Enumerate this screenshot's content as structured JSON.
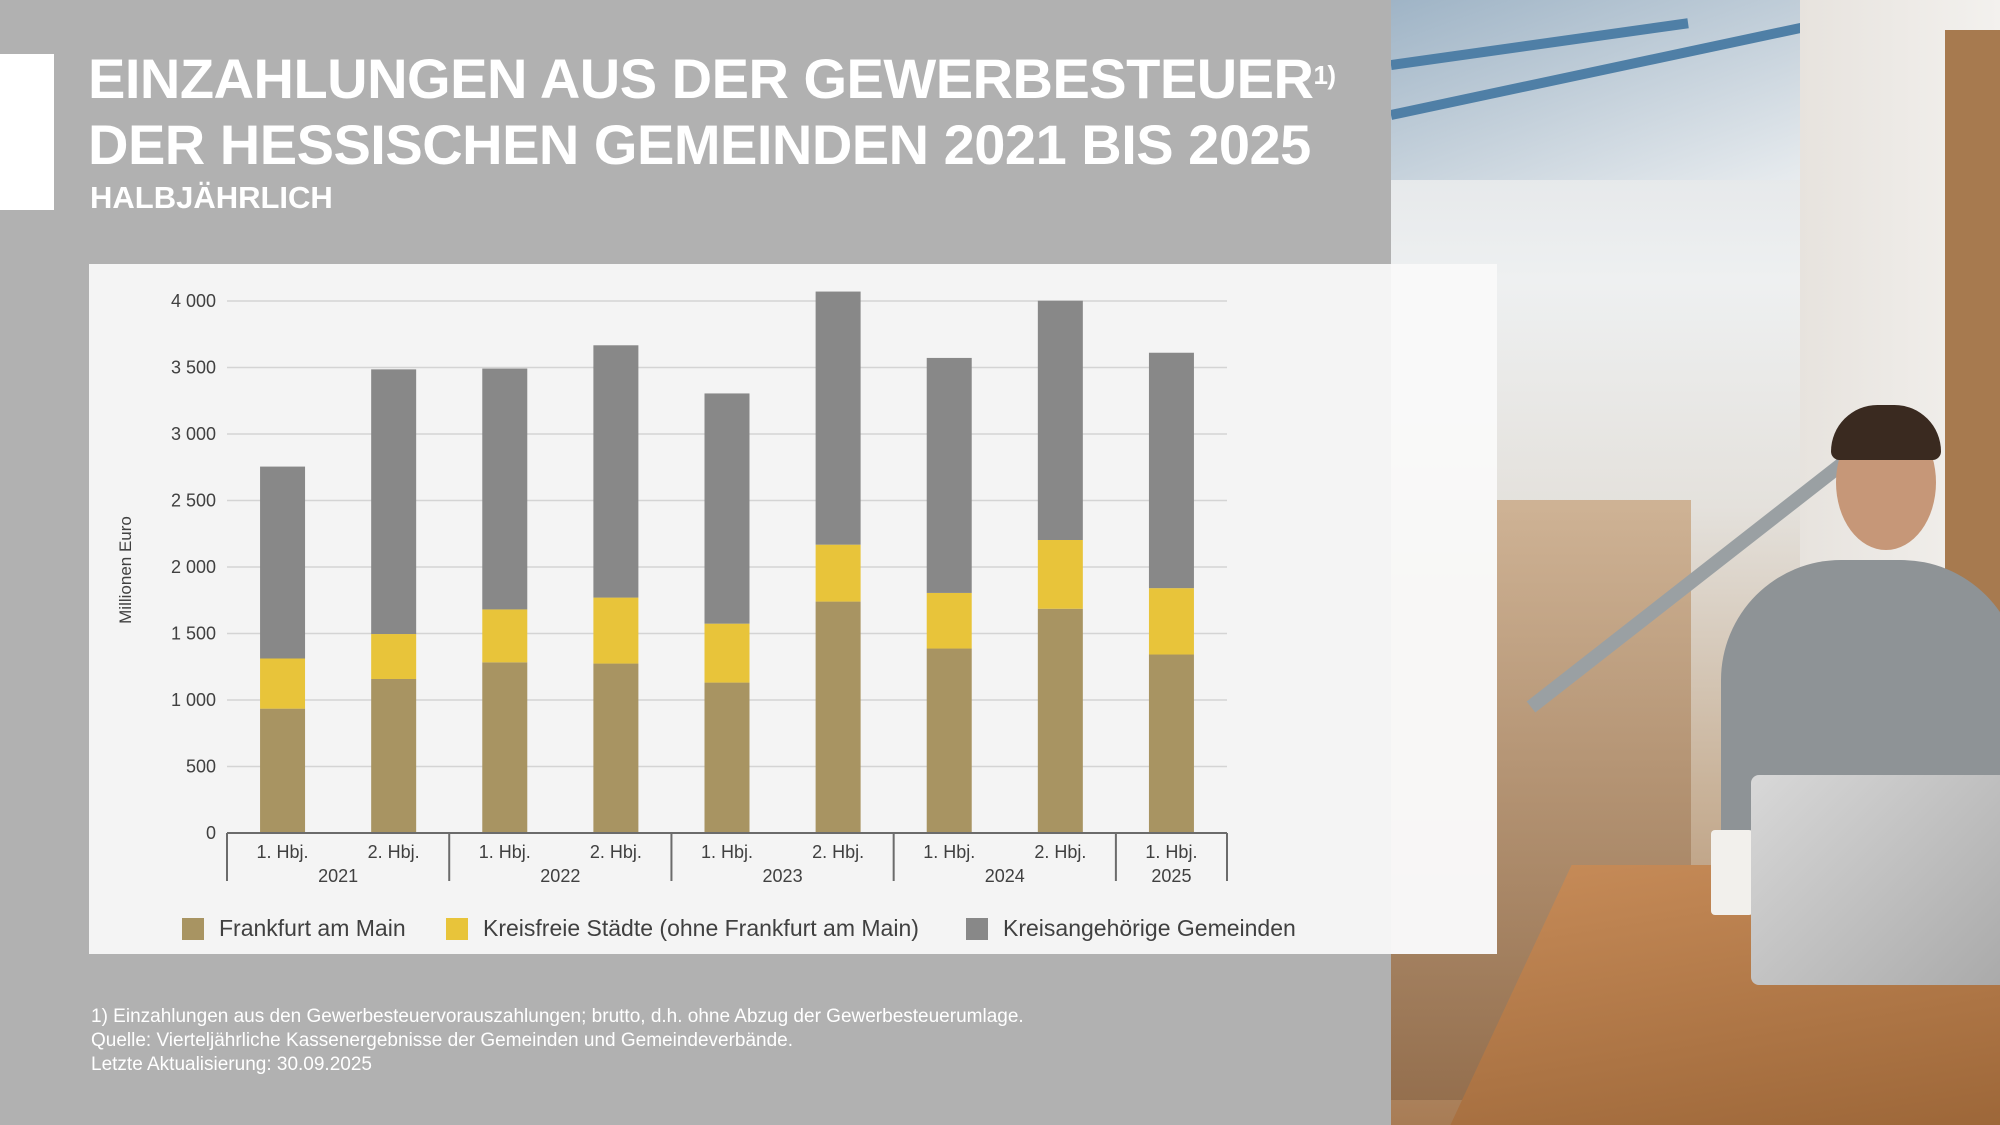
{
  "header": {
    "title_line1": "EINZAHLUNGEN AUS DER GEWERBESTEUER",
    "title_footnote_mark": "1)",
    "title_line2": "DER HESSISCHEN GEMEINDEN 2021 BIS 2025",
    "subtitle": "HALBJÄHRLICH"
  },
  "chart_data": {
    "type": "bar",
    "stacked": true,
    "title": "Einzahlungen aus der Gewerbesteuer der hessischen Gemeinden 2021 bis 2025",
    "ylabel": "Millionen Euro",
    "xlabel": "",
    "ylim": [
      0,
      4000
    ],
    "yticks": [
      0,
      500,
      1000,
      1500,
      2000,
      2500,
      3000,
      3500,
      4000
    ],
    "ytick_labels": [
      "0",
      "500",
      "1 000",
      "1 500",
      "2 000",
      "2 500",
      "3 000",
      "3 500",
      "4 000"
    ],
    "grid": true,
    "categories": [
      "1. Hbj.",
      "2. Hbj.",
      "1. Hbj.",
      "2. Hbj.",
      "1. Hbj.",
      "2. Hbj.",
      "1. Hbj.",
      "2. Hbj.",
      "1. Hbj."
    ],
    "year_groups": [
      {
        "label": "2021",
        "count": 2
      },
      {
        "label": "2022",
        "count": 2
      },
      {
        "label": "2023",
        "count": 2
      },
      {
        "label": "2024",
        "count": 2
      },
      {
        "label": "2025",
        "count": 1
      }
    ],
    "series": [
      {
        "name": "Frankfurt am Main",
        "color": "#a89462",
        "values": [
          935,
          1158,
          1283,
          1274,
          1131,
          1740,
          1387,
          1686,
          1342
        ]
      },
      {
        "name": "Kreisfreie Städte (ohne Frankfurt am Main)",
        "color": "#e8c43a",
        "values": [
          377,
          338,
          398,
          496,
          443,
          428,
          418,
          517,
          499
        ]
      },
      {
        "name": "Kreisangehörige Gemeinden",
        "color": "#888888",
        "values": [
          1443,
          1990,
          1811,
          1897,
          1731,
          1903,
          1767,
          1799,
          1770
        ]
      }
    ],
    "legend_position": "bottom"
  },
  "footnotes": [
    "1) Einzahlungen aus den Gewerbesteuervorauszahlungen; brutto, d.h. ohne Abzug der Gewerbesteuerumlage.",
    "Quelle: Vierteljährliche Kassenergebnisse der Gemeinden und Gemeindeverbände.",
    "Letzte Aktualisierung: 30.09.2025"
  ]
}
